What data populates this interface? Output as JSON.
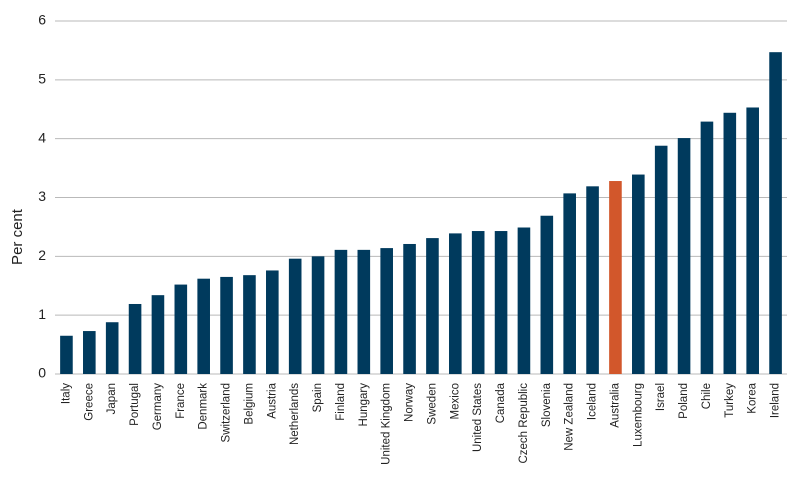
{
  "chart_data": {
    "type": "bar",
    "ylabel": "Per cent",
    "categories": [
      "Italy",
      "Greece",
      "Japan",
      "Portugal",
      "Germany",
      "France",
      "Denmark",
      "Switzerland",
      "Belgium",
      "Austria",
      "Netherlands",
      "Spain",
      "Finland",
      "Hungary",
      "United Kingdom",
      "Norway",
      "Sweden",
      "Mexico",
      "United States",
      "Canada",
      "Czech Republic",
      "Slovenia",
      "New Zealand",
      "Iceland",
      "Australia",
      "Luxembourg",
      "Israel",
      "Poland",
      "Chile",
      "Turkey",
      "Korea",
      "Ireland"
    ],
    "values": [
      0.65,
      0.73,
      0.88,
      1.19,
      1.34,
      1.52,
      1.62,
      1.65,
      1.68,
      1.76,
      1.96,
      2.0,
      2.11,
      2.11,
      2.14,
      2.21,
      2.31,
      2.39,
      2.43,
      2.43,
      2.49,
      2.69,
      3.07,
      3.19,
      3.28,
      3.39,
      3.88,
      4.01,
      4.29,
      4.44,
      4.53,
      5.47
    ],
    "colors": [
      "#003a5d",
      "#003a5d",
      "#003a5d",
      "#003a5d",
      "#003a5d",
      "#003a5d",
      "#003a5d",
      "#003a5d",
      "#003a5d",
      "#003a5d",
      "#003a5d",
      "#003a5d",
      "#003a5d",
      "#003a5d",
      "#003a5d",
      "#003a5d",
      "#003a5d",
      "#003a5d",
      "#003a5d",
      "#003a5d",
      "#003a5d",
      "#003a5d",
      "#003a5d",
      "#003a5d",
      "#d2572b",
      "#003a5d",
      "#003a5d",
      "#003a5d",
      "#003a5d",
      "#003a5d",
      "#003a5d",
      "#003a5d"
    ],
    "ylim": [
      0,
      6
    ],
    "yticks": [
      0,
      1,
      2,
      3,
      4,
      5,
      6
    ],
    "grid": true
  }
}
